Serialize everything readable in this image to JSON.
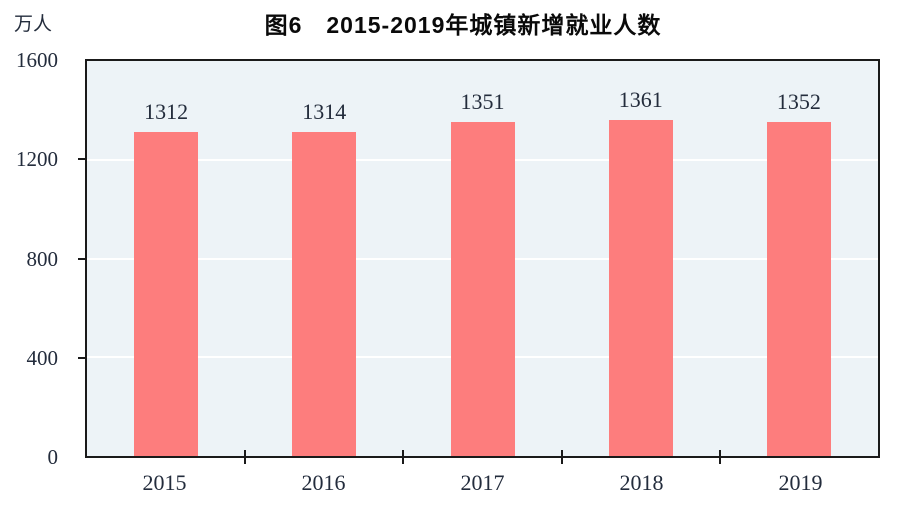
{
  "chart_data": {
    "type": "bar",
    "title": "图6　2015-2019年城镇新增就业人数",
    "unit": "万人",
    "ylabel": "万人",
    "xlabel": "",
    "categories": [
      "2015",
      "2016",
      "2017",
      "2018",
      "2019"
    ],
    "values": [
      1312,
      1314,
      1351,
      1361,
      1352
    ],
    "ylim": [
      0,
      1600
    ],
    "yticks": [
      0,
      400,
      800,
      1200,
      1600
    ],
    "gridlines_at": [
      400,
      800,
      1200
    ],
    "grid": "horizontal",
    "legend": "none"
  },
  "colors": {
    "bar_fill": "#fd7d7d",
    "plot_background": "#edf3f7",
    "gridline": "#ffffff",
    "axis_frame": "#1a1a1a",
    "label_text": "#232c3c",
    "title_text": "#0a0a0a"
  }
}
